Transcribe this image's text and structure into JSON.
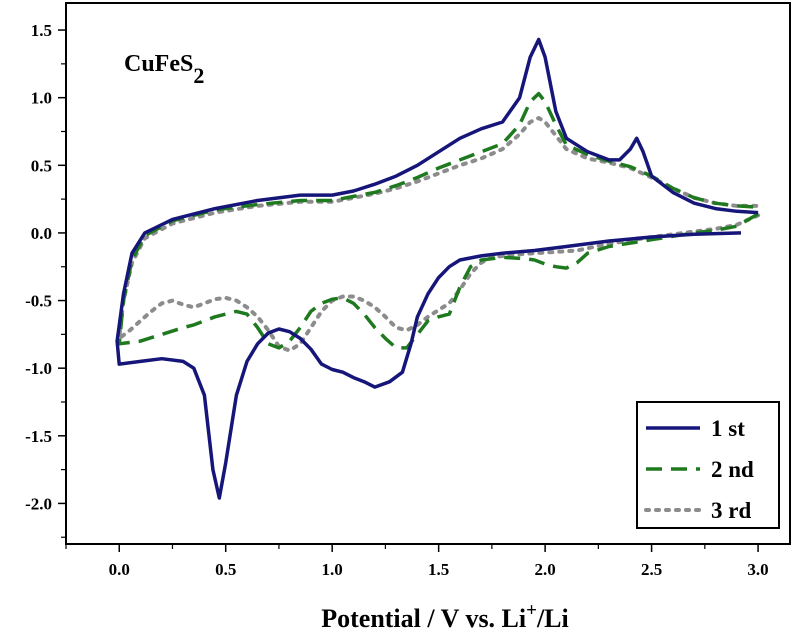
{
  "chart_data": {
    "type": "line",
    "title": "",
    "annotation": {
      "base": "CuFeS",
      "sub": "2"
    },
    "xlabel": {
      "main": "Potential / V vs. Li",
      "sup": "+",
      "tail": "/Li"
    },
    "ylabel": "",
    "xlim": [
      -0.25,
      3.15
    ],
    "ylim": [
      -2.3,
      1.7
    ],
    "xticks": [
      "0.0",
      "0.5",
      "1.0",
      "1.5",
      "2.0",
      "2.5",
      "3.0"
    ],
    "yticks": [
      "1.5",
      "1.0",
      "0.5",
      "0.0",
      "-0.5",
      "-1.0",
      "-1.5",
      "-2.0"
    ],
    "grid": false,
    "legend_position": "bottom-right",
    "series": [
      {
        "name": "1 st",
        "color": "#16167a",
        "style": "solid",
        "points": [
          [
            2.92,
            0.0
          ],
          [
            2.7,
            -0.01
          ],
          [
            2.5,
            -0.03
          ],
          [
            2.3,
            -0.06
          ],
          [
            2.1,
            -0.1
          ],
          [
            1.95,
            -0.13
          ],
          [
            1.8,
            -0.15
          ],
          [
            1.7,
            -0.17
          ],
          [
            1.6,
            -0.2
          ],
          [
            1.55,
            -0.25
          ],
          [
            1.5,
            -0.33
          ],
          [
            1.45,
            -0.45
          ],
          [
            1.4,
            -0.62
          ],
          [
            1.37,
            -0.82
          ],
          [
            1.33,
            -1.03
          ],
          [
            1.27,
            -1.1
          ],
          [
            1.2,
            -1.14
          ],
          [
            1.15,
            -1.1
          ],
          [
            1.1,
            -1.07
          ],
          [
            1.05,
            -1.03
          ],
          [
            1.0,
            -1.01
          ],
          [
            0.95,
            -0.97
          ],
          [
            0.9,
            -0.86
          ],
          [
            0.85,
            -0.78
          ],
          [
            0.8,
            -0.73
          ],
          [
            0.75,
            -0.71
          ],
          [
            0.7,
            -0.74
          ],
          [
            0.65,
            -0.82
          ],
          [
            0.6,
            -0.95
          ],
          [
            0.55,
            -1.2
          ],
          [
            0.5,
            -1.7
          ],
          [
            0.47,
            -1.96
          ],
          [
            0.44,
            -1.75
          ],
          [
            0.4,
            -1.2
          ],
          [
            0.35,
            -1.0
          ],
          [
            0.3,
            -0.95
          ],
          [
            0.2,
            -0.93
          ],
          [
            0.1,
            -0.95
          ],
          [
            0.0,
            -0.97
          ],
          [
            -0.01,
            -0.8
          ],
          [
            0.02,
            -0.45
          ],
          [
            0.06,
            -0.15
          ],
          [
            0.12,
            0.0
          ],
          [
            0.25,
            0.1
          ],
          [
            0.45,
            0.18
          ],
          [
            0.65,
            0.24
          ],
          [
            0.85,
            0.28
          ],
          [
            1.0,
            0.28
          ],
          [
            1.1,
            0.31
          ],
          [
            1.2,
            0.36
          ],
          [
            1.3,
            0.42
          ],
          [
            1.4,
            0.5
          ],
          [
            1.5,
            0.6
          ],
          [
            1.6,
            0.7
          ],
          [
            1.7,
            0.77
          ],
          [
            1.8,
            0.82
          ],
          [
            1.88,
            1.0
          ],
          [
            1.93,
            1.3
          ],
          [
            1.97,
            1.43
          ],
          [
            2.0,
            1.3
          ],
          [
            2.05,
            0.9
          ],
          [
            2.1,
            0.7
          ],
          [
            2.2,
            0.6
          ],
          [
            2.3,
            0.54
          ],
          [
            2.35,
            0.54
          ],
          [
            2.4,
            0.62
          ],
          [
            2.43,
            0.7
          ],
          [
            2.46,
            0.6
          ],
          [
            2.5,
            0.42
          ],
          [
            2.6,
            0.3
          ],
          [
            2.7,
            0.22
          ],
          [
            2.8,
            0.18
          ],
          [
            2.9,
            0.16
          ],
          [
            3.0,
            0.15
          ]
        ]
      },
      {
        "name": "2 nd",
        "color": "#1f7a1f",
        "style": "dashed",
        "points": [
          [
            3.0,
            0.14
          ],
          [
            2.9,
            0.05
          ],
          [
            2.8,
            0.02
          ],
          [
            2.7,
            0.0
          ],
          [
            2.5,
            -0.05
          ],
          [
            2.3,
            -0.1
          ],
          [
            2.2,
            -0.15
          ],
          [
            2.15,
            -0.22
          ],
          [
            2.1,
            -0.26
          ],
          [
            2.05,
            -0.25
          ],
          [
            2.0,
            -0.23
          ],
          [
            1.95,
            -0.2
          ],
          [
            1.9,
            -0.19
          ],
          [
            1.8,
            -0.18
          ],
          [
            1.7,
            -0.2
          ],
          [
            1.65,
            -0.25
          ],
          [
            1.6,
            -0.4
          ],
          [
            1.55,
            -0.6
          ],
          [
            1.5,
            -0.62
          ],
          [
            1.45,
            -0.65
          ],
          [
            1.4,
            -0.75
          ],
          [
            1.35,
            -0.85
          ],
          [
            1.3,
            -0.85
          ],
          [
            1.25,
            -0.78
          ],
          [
            1.2,
            -0.7
          ],
          [
            1.15,
            -0.6
          ],
          [
            1.1,
            -0.52
          ],
          [
            1.05,
            -0.48
          ],
          [
            1.0,
            -0.49
          ],
          [
            0.95,
            -0.52
          ],
          [
            0.9,
            -0.58
          ],
          [
            0.85,
            -0.7
          ],
          [
            0.8,
            -0.8
          ],
          [
            0.75,
            -0.85
          ],
          [
            0.7,
            -0.82
          ],
          [
            0.65,
            -0.7
          ],
          [
            0.6,
            -0.6
          ],
          [
            0.55,
            -0.58
          ],
          [
            0.5,
            -0.6
          ],
          [
            0.45,
            -0.62
          ],
          [
            0.4,
            -0.65
          ],
          [
            0.35,
            -0.68
          ],
          [
            0.3,
            -0.7
          ],
          [
            0.2,
            -0.75
          ],
          [
            0.1,
            -0.8
          ],
          [
            0.0,
            -0.82
          ],
          [
            0.02,
            -0.5
          ],
          [
            0.06,
            -0.2
          ],
          [
            0.12,
            -0.02
          ],
          [
            0.25,
            0.09
          ],
          [
            0.45,
            0.17
          ],
          [
            0.65,
            0.21
          ],
          [
            0.85,
            0.24
          ],
          [
            1.0,
            0.24
          ],
          [
            1.1,
            0.27
          ],
          [
            1.2,
            0.3
          ],
          [
            1.3,
            0.35
          ],
          [
            1.4,
            0.41
          ],
          [
            1.5,
            0.48
          ],
          [
            1.6,
            0.54
          ],
          [
            1.7,
            0.6
          ],
          [
            1.8,
            0.66
          ],
          [
            1.88,
            0.8
          ],
          [
            1.93,
            0.97
          ],
          [
            1.97,
            1.03
          ],
          [
            2.0,
            0.97
          ],
          [
            2.05,
            0.8
          ],
          [
            2.1,
            0.65
          ],
          [
            2.2,
            0.58
          ],
          [
            2.3,
            0.53
          ],
          [
            2.4,
            0.49
          ],
          [
            2.5,
            0.42
          ],
          [
            2.6,
            0.33
          ],
          [
            2.7,
            0.26
          ],
          [
            2.8,
            0.22
          ],
          [
            2.9,
            0.2
          ],
          [
            3.0,
            0.19
          ]
        ]
      },
      {
        "name": "3 rd",
        "color": "#8c8c8c",
        "style": "dotted",
        "points": [
          [
            3.0,
            0.13
          ],
          [
            2.9,
            0.06
          ],
          [
            2.8,
            0.03
          ],
          [
            2.7,
            0.01
          ],
          [
            2.5,
            -0.03
          ],
          [
            2.3,
            -0.08
          ],
          [
            2.15,
            -0.13
          ],
          [
            2.05,
            -0.14
          ],
          [
            1.95,
            -0.15
          ],
          [
            1.85,
            -0.16
          ],
          [
            1.75,
            -0.18
          ],
          [
            1.7,
            -0.22
          ],
          [
            1.65,
            -0.3
          ],
          [
            1.6,
            -0.42
          ],
          [
            1.55,
            -0.52
          ],
          [
            1.5,
            -0.57
          ],
          [
            1.45,
            -0.62
          ],
          [
            1.4,
            -0.68
          ],
          [
            1.35,
            -0.72
          ],
          [
            1.3,
            -0.7
          ],
          [
            1.25,
            -0.62
          ],
          [
            1.2,
            -0.55
          ],
          [
            1.15,
            -0.5
          ],
          [
            1.1,
            -0.47
          ],
          [
            1.05,
            -0.47
          ],
          [
            1.0,
            -0.5
          ],
          [
            0.95,
            -0.58
          ],
          [
            0.9,
            -0.7
          ],
          [
            0.85,
            -0.82
          ],
          [
            0.8,
            -0.87
          ],
          [
            0.75,
            -0.84
          ],
          [
            0.7,
            -0.72
          ],
          [
            0.65,
            -0.62
          ],
          [
            0.6,
            -0.55
          ],
          [
            0.55,
            -0.5
          ],
          [
            0.5,
            -0.48
          ],
          [
            0.45,
            -0.49
          ],
          [
            0.4,
            -0.52
          ],
          [
            0.35,
            -0.55
          ],
          [
            0.3,
            -0.53
          ],
          [
            0.25,
            -0.5
          ],
          [
            0.2,
            -0.52
          ],
          [
            0.15,
            -0.58
          ],
          [
            0.1,
            -0.65
          ],
          [
            0.05,
            -0.72
          ],
          [
            0.0,
            -0.78
          ],
          [
            0.02,
            -0.5
          ],
          [
            0.06,
            -0.22
          ],
          [
            0.12,
            -0.04
          ],
          [
            0.25,
            0.07
          ],
          [
            0.45,
            0.15
          ],
          [
            0.65,
            0.2
          ],
          [
            0.85,
            0.23
          ],
          [
            1.0,
            0.23
          ],
          [
            1.1,
            0.26
          ],
          [
            1.2,
            0.29
          ],
          [
            1.3,
            0.33
          ],
          [
            1.4,
            0.38
          ],
          [
            1.5,
            0.44
          ],
          [
            1.6,
            0.5
          ],
          [
            1.7,
            0.55
          ],
          [
            1.8,
            0.62
          ],
          [
            1.88,
            0.73
          ],
          [
            1.93,
            0.82
          ],
          [
            1.97,
            0.85
          ],
          [
            2.0,
            0.82
          ],
          [
            2.05,
            0.72
          ],
          [
            2.1,
            0.62
          ],
          [
            2.2,
            0.55
          ],
          [
            2.3,
            0.52
          ],
          [
            2.4,
            0.48
          ],
          [
            2.5,
            0.41
          ],
          [
            2.6,
            0.33
          ],
          [
            2.7,
            0.26
          ],
          [
            2.8,
            0.22
          ],
          [
            2.9,
            0.2
          ],
          [
            3.0,
            0.2
          ]
        ]
      }
    ]
  }
}
